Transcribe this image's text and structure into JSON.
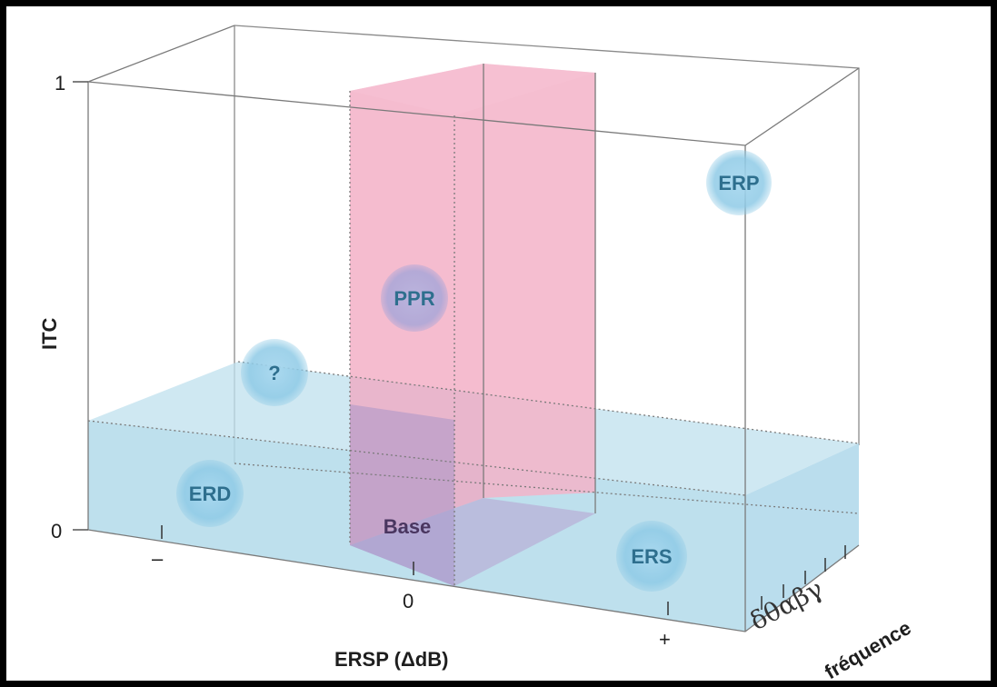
{
  "y_axis": {
    "label": "ITC",
    "tick_top": "1",
    "tick_bottom": "0"
  },
  "x_axis": {
    "label": "ERSP (ΔdB)",
    "tick_minus": "–",
    "tick_zero": "0",
    "tick_plus": "+"
  },
  "z_axis": {
    "label": "fréquence",
    "bands": "δθαβγ"
  },
  "regions": {
    "baseline": "Base",
    "bubbles": [
      {
        "key": "erp",
        "label": "ERP"
      },
      {
        "key": "ppr",
        "label": "PPR"
      },
      {
        "key": "question",
        "label": "?"
      },
      {
        "key": "erd",
        "label": "ERD"
      },
      {
        "key": "ers",
        "label": "ERS"
      }
    ]
  },
  "colors": {
    "blue_plane": "#b7dceb",
    "pink_plane": "#f2a7bf",
    "bubble_fill": "#8fc9e6",
    "frame_border": "#000000"
  }
}
